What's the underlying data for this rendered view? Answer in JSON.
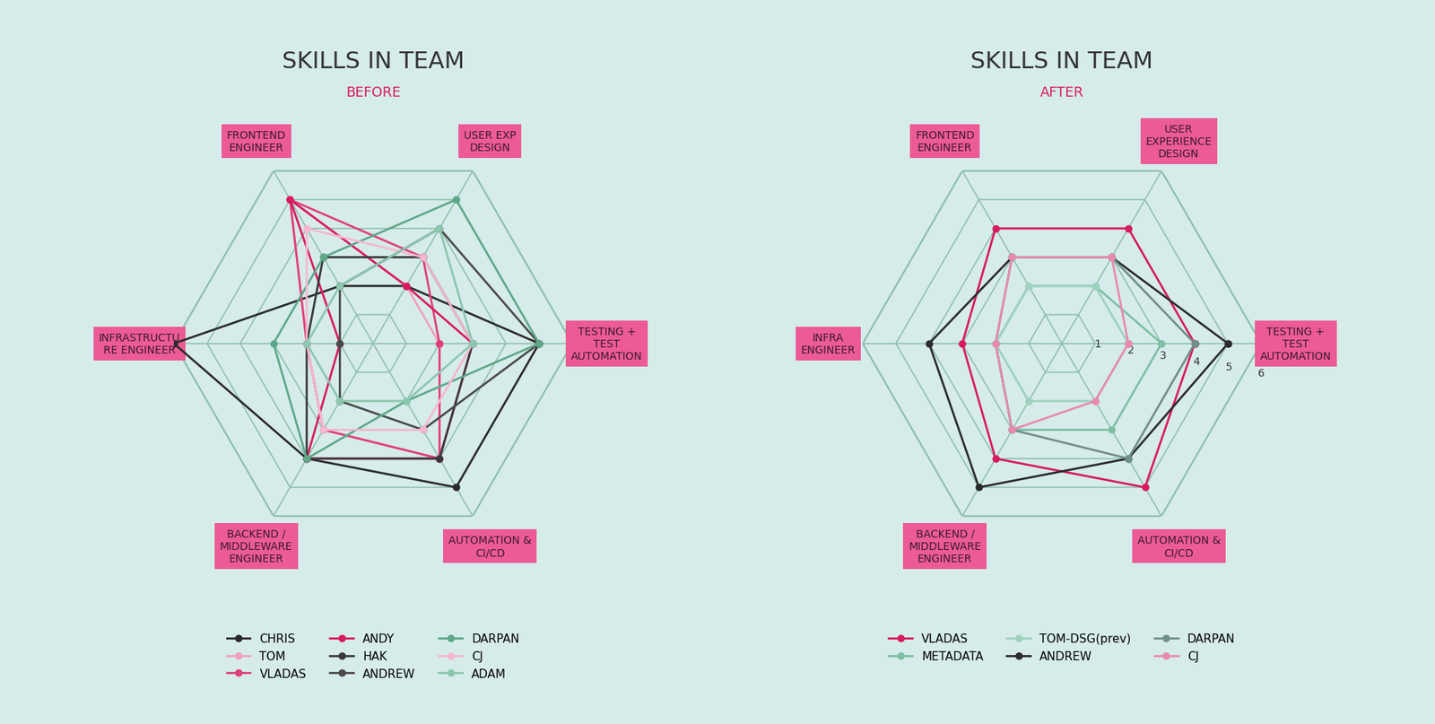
{
  "chart_data": [
    {
      "type": "radar",
      "title": "SKILLS IN TEAM",
      "subtitle": "BEFORE",
      "categories": [
        "TESTING + TEST AUTOMATION",
        "USER EXP DESIGN",
        "FRONTEND ENGINEER",
        "INFRASTRUCTURE ENGINEER",
        "BACKEND / MIDDLEWARE ENGINEER",
        "AUTOMATION & CI/CD"
      ],
      "ylim": [
        0,
        6
      ],
      "yticks": [
        1,
        2,
        3,
        4,
        5,
        6
      ],
      "grid": true,
      "tick_labels": "x",
      "legend": "upper center",
      "marker": "o",
      "line_style": "solid",
      "series": [
        {
          "name": "CHRIS",
          "color": "#2b2b2b",
          "values": [
            5,
            2,
            2,
            6,
            4,
            5
          ]
        },
        {
          "name": "TOM",
          "color": "#f2a0c0",
          "values": [
            2,
            2,
            5,
            2,
            3,
            4
          ]
        },
        {
          "name": "VLADAS",
          "color": "#e0407a",
          "values": [
            2,
            3,
            5,
            2,
            3,
            4
          ]
        },
        {
          "name": "ANDY",
          "color": "#d81b60",
          "values": [
            3,
            2,
            5,
            1,
            4,
            4
          ]
        },
        {
          "name": "HAK",
          "color": "#3a3a3a",
          "values": [
            3,
            3,
            3,
            2,
            4,
            4
          ]
        },
        {
          "name": "ANDREW",
          "color": "#4a4a4a",
          "values": [
            5,
            4,
            2,
            1,
            2,
            3
          ]
        },
        {
          "name": "DARPAN",
          "color": "#5fa88a",
          "values": [
            5,
            5,
            3,
            3,
            4,
            2
          ]
        },
        {
          "name": "CJ",
          "color": "#f5b8cf",
          "values": [
            3,
            3,
            4,
            2,
            3,
            3
          ]
        },
        {
          "name": "ADAM",
          "color": "#8cc7b0",
          "values": [
            3,
            4,
            2,
            2,
            2,
            2
          ]
        }
      ]
    },
    {
      "type": "radar",
      "title": "SKILLS IN TEAM",
      "subtitle": "AFTER",
      "categories": [
        "TESTING + TEST AUTOMATION",
        "USER EXPERIENCE DESIGN",
        "FRONTEND ENGINEER",
        "INFRA ENGINEER",
        "BACKEND / MIDDLEWARE ENGINEER",
        "AUTOMATION & CI/CD"
      ],
      "ylim": [
        0,
        6
      ],
      "yticks": [
        1,
        2,
        3,
        4,
        5,
        6
      ],
      "grid": true,
      "tick_labels": true,
      "legend": "upper center",
      "marker": "o",
      "line_style": "solid",
      "series": [
        {
          "name": "VLADAS",
          "color": "#d81b60",
          "values": [
            4,
            4,
            4,
            3,
            4,
            5
          ]
        },
        {
          "name": "METADATA",
          "color": "#7fbfa5",
          "values": [
            3,
            2,
            2,
            2,
            3,
            3
          ]
        },
        {
          "name": "TOM-DSG(prev)",
          "color": "#9fd1bf",
          "values": [
            2,
            2,
            2,
            2,
            2,
            2
          ]
        },
        {
          "name": "ANDREW",
          "color": "#2b2b2b",
          "values": [
            5,
            3,
            3,
            4,
            5,
            4
          ]
        },
        {
          "name": "DARPAN",
          "color": "#6f8f86",
          "values": [
            4,
            3,
            3,
            2,
            3,
            4
          ]
        },
        {
          "name": "CJ",
          "color": "#e88aae",
          "values": [
            2,
            3,
            3,
            2,
            3,
            2
          ]
        }
      ]
    }
  ]
}
